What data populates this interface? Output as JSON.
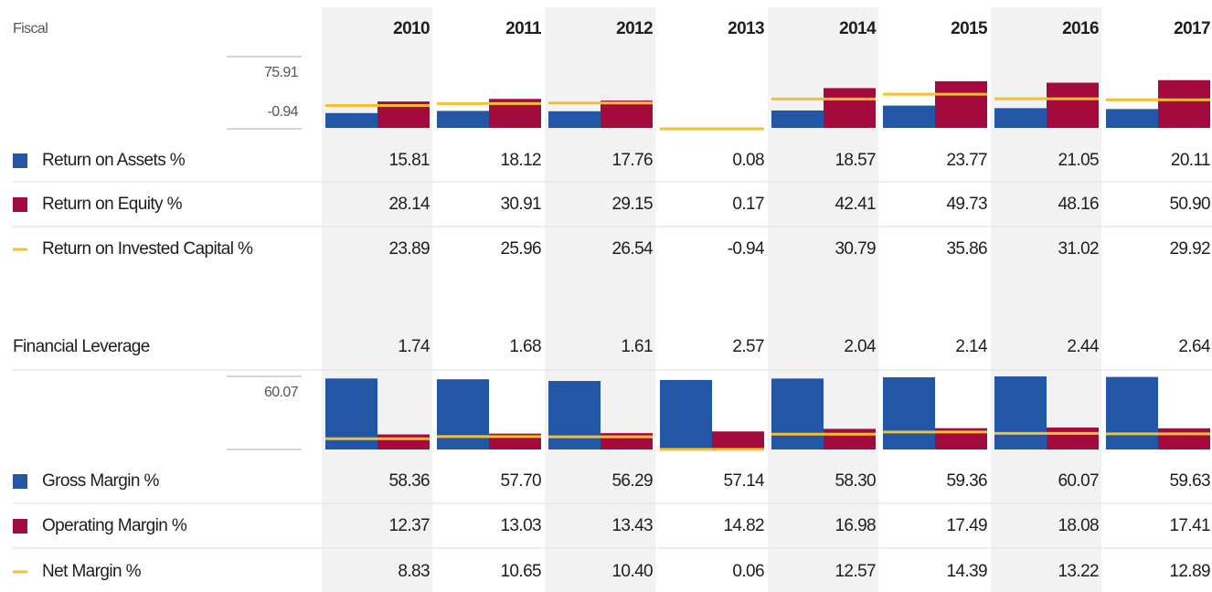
{
  "header": {
    "fiscal": "Fiscal",
    "years": [
      "2010",
      "2011",
      "2012",
      "2013",
      "2014",
      "2015",
      "2016",
      "2017"
    ]
  },
  "returns": {
    "ylim": [
      -0.94,
      75.91
    ],
    "yticks": [
      75.91,
      -0.94
    ],
    "rows": [
      {
        "label": "Return on Assets %",
        "color": "#2356a5",
        "type": "bar",
        "values": [
          15.81,
          18.12,
          17.76,
          0.08,
          18.57,
          23.77,
          21.05,
          20.11
        ]
      },
      {
        "label": "Return on Equity %",
        "color": "#a50a3c",
        "type": "bar",
        "values": [
          28.14,
          30.91,
          29.15,
          0.17,
          42.41,
          49.73,
          48.16,
          50.9
        ],
        "value_labels": [
          "28.14",
          "30.91",
          "29.15",
          "0.17",
          "42.41",
          "49.73",
          "48.16",
          "50.90"
        ]
      },
      {
        "label": "Return on Invested Capital %",
        "color": "#f3c12f",
        "type": "line",
        "values": [
          23.89,
          25.96,
          26.54,
          -0.94,
          30.79,
          35.86,
          31.02,
          29.92
        ]
      }
    ]
  },
  "leverage": {
    "label": "Financial Leverage",
    "values": [
      1.74,
      1.68,
      1.61,
      2.57,
      2.04,
      2.14,
      2.44,
      2.64
    ]
  },
  "margins": {
    "ylim": [
      0,
      60.07
    ],
    "yticks": [
      60.07
    ],
    "rows": [
      {
        "label": "Gross Margin %",
        "color": "#2356a5",
        "type": "bar",
        "values": [
          58.36,
          57.7,
          56.29,
          57.14,
          58.3,
          59.36,
          60.07,
          59.63
        ],
        "value_labels": [
          "58.36",
          "57.70",
          "56.29",
          "57.14",
          "58.30",
          "59.36",
          "60.07",
          "59.63"
        ]
      },
      {
        "label": "Operating Margin %",
        "color": "#a50a3c",
        "type": "bar",
        "values": [
          12.37,
          13.03,
          13.43,
          14.82,
          16.98,
          17.49,
          18.08,
          17.41
        ]
      },
      {
        "label": "Net Margin %",
        "color": "#f3c12f",
        "type": "line",
        "values": [
          8.83,
          10.65,
          10.4,
          0.06,
          12.57,
          14.39,
          13.22,
          12.89
        ],
        "value_labels": [
          "8.83",
          "10.65",
          "10.40",
          "0.06",
          "12.57",
          "14.39",
          "13.22",
          "12.89"
        ]
      }
    ]
  }
}
